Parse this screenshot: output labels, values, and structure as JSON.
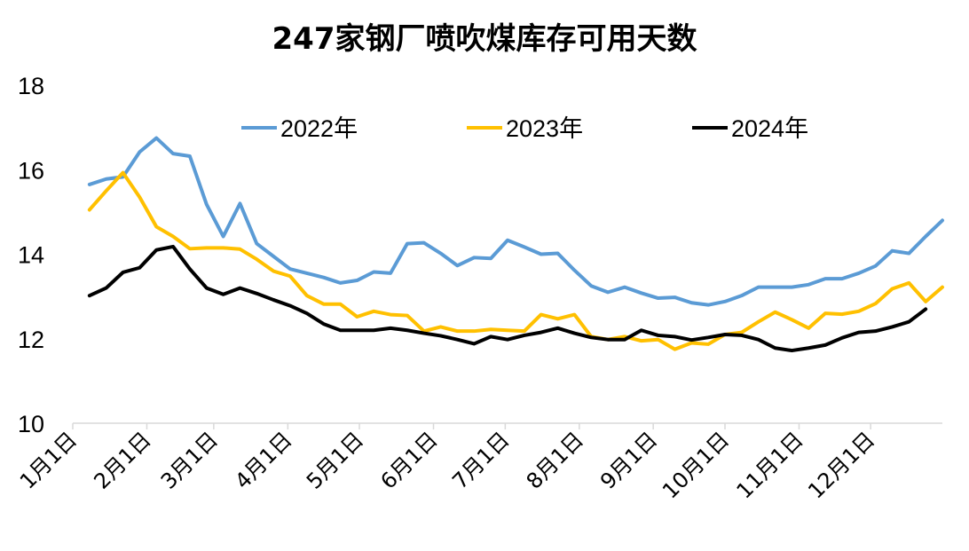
{
  "chart_data": {
    "type": "line",
    "title": "247家钢厂喷吹煤库存可用天数",
    "xlabel": "",
    "ylabel": "",
    "ylim": [
      10,
      18
    ],
    "yticks": [
      10,
      12,
      14,
      16,
      18
    ],
    "x_range_weeks": [
      0,
      52
    ],
    "xtick_labels": [
      "1月1日",
      "2月1日",
      "3月1日",
      "4月1日",
      "5月1日",
      "6月1日",
      "7月1日",
      "8月1日",
      "9月1日",
      "10月1日",
      "11月1日",
      "12月1日"
    ],
    "xtick_weeks": [
      0,
      4.43,
      8.43,
      12.86,
      17.14,
      21.57,
      25.86,
      30.29,
      34.71,
      39.0,
      43.43,
      47.71
    ],
    "grid": false,
    "legend_position": "top",
    "series": [
      {
        "name": "2022年",
        "color": "#5B9BD5",
        "start_week": 1,
        "values": [
          15.65,
          15.78,
          15.83,
          16.42,
          16.75,
          16.38,
          16.32,
          15.18,
          14.42,
          15.2,
          14.25,
          13.95,
          13.65,
          13.55,
          13.45,
          13.32,
          13.38,
          13.58,
          13.55,
          14.25,
          14.27,
          14.02,
          13.73,
          13.92,
          13.9,
          14.33,
          14.17,
          14.0,
          14.02,
          13.62,
          13.25,
          13.1,
          13.22,
          13.08,
          12.96,
          12.98,
          12.85,
          12.8,
          12.88,
          13.02,
          13.22,
          13.22,
          13.22,
          13.28,
          13.42,
          13.42,
          13.55,
          13.72,
          14.08,
          14.02,
          14.42,
          14.8
        ]
      },
      {
        "name": "2023年",
        "color": "#FFC000",
        "start_week": 1,
        "values": [
          15.05,
          15.5,
          15.93,
          15.35,
          14.65,
          14.42,
          14.13,
          14.15,
          14.15,
          14.12,
          13.88,
          13.6,
          13.48,
          13.02,
          12.82,
          12.82,
          12.52,
          12.65,
          12.57,
          12.55,
          12.18,
          12.28,
          12.18,
          12.18,
          12.22,
          12.2,
          12.18,
          12.57,
          12.47,
          12.57,
          12.05,
          11.98,
          12.05,
          11.95,
          11.98,
          11.75,
          11.9,
          11.87,
          12.1,
          12.15,
          12.4,
          12.63,
          12.45,
          12.25,
          12.6,
          12.58,
          12.65,
          12.83,
          13.18,
          13.32,
          12.88,
          13.22
        ]
      },
      {
        "name": "2024年",
        "color": "#000000",
        "start_week": 1,
        "values": [
          13.02,
          13.2,
          13.57,
          13.68,
          14.1,
          14.18,
          13.65,
          13.2,
          13.05,
          13.2,
          13.07,
          12.92,
          12.78,
          12.6,
          12.35,
          12.2,
          12.2,
          12.2,
          12.25,
          12.2,
          12.13,
          12.07,
          11.98,
          11.88,
          12.05,
          11.98,
          12.08,
          12.15,
          12.25,
          12.13,
          12.03,
          11.98,
          11.98,
          12.2,
          12.08,
          12.05,
          11.97,
          12.03,
          12.1,
          12.08,
          11.98,
          11.78,
          11.72,
          11.78,
          11.85,
          12.02,
          12.15,
          12.18,
          12.28,
          12.4,
          12.7
        ]
      }
    ]
  }
}
